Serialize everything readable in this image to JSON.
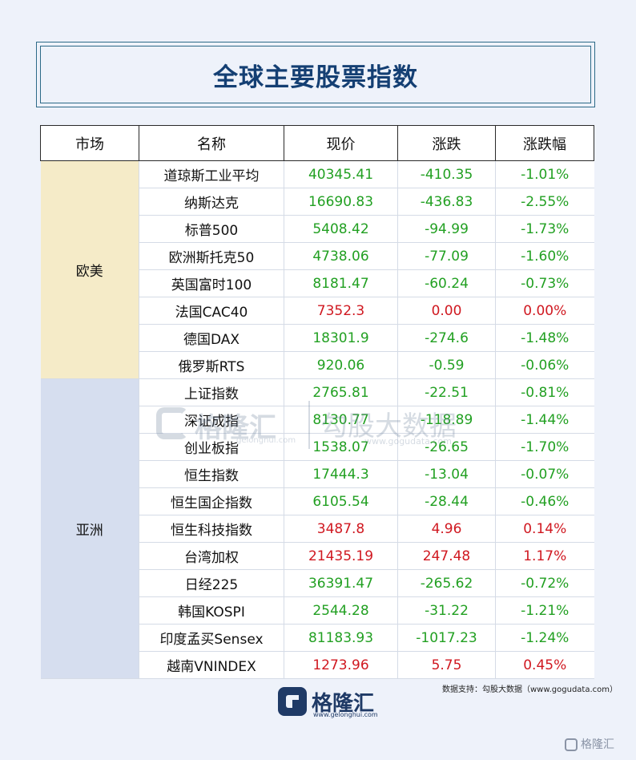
{
  "title": "全球主要股票指数",
  "columns": {
    "market": "市场",
    "name": "名称",
    "price": "现价",
    "change": "涨跌",
    "change_pct": "涨跌幅"
  },
  "groups": [
    {
      "region": "欧美",
      "rows": [
        {
          "name": "道琼斯工业平均",
          "price": "40345.41",
          "change": "-410.35",
          "pct": "-1.01%",
          "dir": "down"
        },
        {
          "name": "纳斯达克",
          "price": "16690.83",
          "change": "-436.83",
          "pct": "-2.55%",
          "dir": "down"
        },
        {
          "name": "标普500",
          "price": "5408.42",
          "change": "-94.99",
          "pct": "-1.73%",
          "dir": "down"
        },
        {
          "name": "欧洲斯托克50",
          "price": "4738.06",
          "change": "-77.09",
          "pct": "-1.60%",
          "dir": "down"
        },
        {
          "name": "英国富时100",
          "price": "8181.47",
          "change": "-60.24",
          "pct": "-0.73%",
          "dir": "down"
        },
        {
          "name": "法国CAC40",
          "price": "7352.3",
          "change": "0.00",
          "pct": "0.00%",
          "dir": "up"
        },
        {
          "name": "德国DAX",
          "price": "18301.9",
          "change": "-274.6",
          "pct": "-1.48%",
          "dir": "down"
        },
        {
          "name": "俄罗斯RTS",
          "price": "920.06",
          "change": "-0.59",
          "pct": "-0.06%",
          "dir": "down"
        }
      ]
    },
    {
      "region": "亚洲",
      "rows": [
        {
          "name": "上证指数",
          "price": "2765.81",
          "change": "-22.51",
          "pct": "-0.81%",
          "dir": "down"
        },
        {
          "name": "深证成指",
          "price": "8130.77",
          "change": "-118.89",
          "pct": "-1.44%",
          "dir": "down"
        },
        {
          "name": "创业板指",
          "price": "1538.07",
          "change": "-26.65",
          "pct": "-1.70%",
          "dir": "down"
        },
        {
          "name": "恒生指数",
          "price": "17444.3",
          "change": "-13.04",
          "pct": "-0.07%",
          "dir": "down"
        },
        {
          "name": "恒生国企指数",
          "price": "6105.54",
          "change": "-28.44",
          "pct": "-0.46%",
          "dir": "down"
        },
        {
          "name": "恒生科技指数",
          "price": "3487.8",
          "change": "4.96",
          "pct": "0.14%",
          "dir": "up"
        },
        {
          "name": "台湾加权",
          "price": "21435.19",
          "change": "247.48",
          "pct": "1.17%",
          "dir": "up"
        },
        {
          "name": "日经225",
          "price": "36391.47",
          "change": "-265.62",
          "pct": "-0.72%",
          "dir": "down"
        },
        {
          "name": "韩国KOSPI",
          "price": "2544.28",
          "change": "-31.22",
          "pct": "-1.21%",
          "dir": "down"
        },
        {
          "name": "印度孟买Sensex",
          "price": "81183.93",
          "change": "-1017.23",
          "pct": "-1.24%",
          "dir": "down"
        },
        {
          "name": "越南VNINDEX",
          "price": "1273.96",
          "change": "5.75",
          "pct": "0.45%",
          "dir": "up"
        }
      ]
    }
  ],
  "watermark": {
    "brand": "格隆汇",
    "sub": "gelonghui.com",
    "data": "勾股大数据",
    "url": "www.gogudata.com"
  },
  "source_note": "数据支持：勾股大数据（www.gogudata.com）",
  "logo": {
    "brand": "格隆汇",
    "sub": "www.gelonghui.com"
  },
  "corner_mark": "格隆汇",
  "colors": {
    "title": "#143f73",
    "up": "#d01820",
    "down": "#22a022",
    "europe_bg": "#f5ebc8",
    "asia_bg": "#d6deef"
  }
}
